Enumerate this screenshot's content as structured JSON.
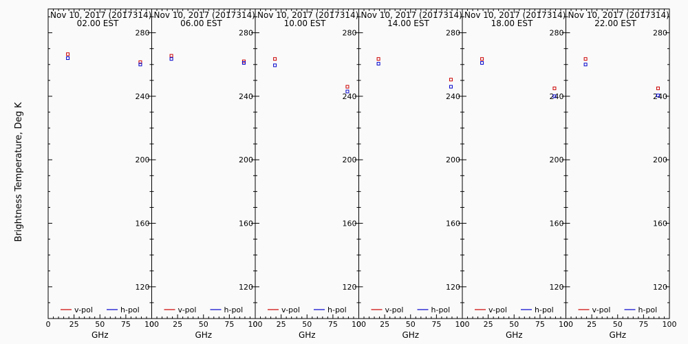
{
  "ylabel": "Brightness Temperature, Deg K",
  "chart_data": [
    {
      "type": "scatter",
      "date_line": "Nov 10, 2017 (2017314)",
      "time_line": "02.00 EST",
      "xlabel": "GHz",
      "ylabel": "Brightness Temperature, Deg K",
      "xlim": [
        0,
        100
      ],
      "ylim": [
        100,
        295
      ],
      "x_ticks": [
        0,
        25,
        50,
        75,
        100
      ],
      "y_ticks": [
        120,
        160,
        200,
        240,
        280
      ],
      "series": [
        {
          "name": "v-pol",
          "color": "#cc0000",
          "points": [
            [
              19,
              266.5
            ],
            [
              89,
              261.5
            ]
          ]
        },
        {
          "name": "h-pol",
          "color": "#0000cc",
          "points": [
            [
              19,
              264
            ],
            [
              89,
              260
            ]
          ]
        }
      ]
    },
    {
      "type": "scatter",
      "date_line": "Nov 10, 2017 (2017314)",
      "time_line": "06.00 EST",
      "xlabel": "GHz",
      "ylabel": "Brightness Temperature, Deg K",
      "xlim": [
        0,
        100
      ],
      "ylim": [
        100,
        295
      ],
      "x_ticks": [
        0,
        25,
        50,
        75,
        100
      ],
      "y_ticks": [
        120,
        160,
        200,
        240,
        280
      ],
      "series": [
        {
          "name": "v-pol",
          "color": "#cc0000",
          "points": [
            [
              19,
              265.5
            ],
            [
              89,
              262
            ]
          ]
        },
        {
          "name": "h-pol",
          "color": "#0000cc",
          "points": [
            [
              19,
              263.5
            ],
            [
              89,
              261
            ]
          ]
        }
      ]
    },
    {
      "type": "scatter",
      "date_line": "Nov 10, 2017 (2017314)",
      "time_line": "10.00 EST",
      "xlabel": "GHz",
      "ylabel": "Brightness Temperature, Deg K",
      "xlim": [
        0,
        100
      ],
      "ylim": [
        100,
        295
      ],
      "x_ticks": [
        0,
        25,
        50,
        75,
        100
      ],
      "y_ticks": [
        120,
        160,
        200,
        240,
        280
      ],
      "series": [
        {
          "name": "v-pol",
          "color": "#cc0000",
          "points": [
            [
              19,
              263.5
            ],
            [
              89,
              246
            ]
          ]
        },
        {
          "name": "h-pol",
          "color": "#0000cc",
          "points": [
            [
              19,
              259.5
            ],
            [
              89,
              243
            ]
          ]
        }
      ]
    },
    {
      "type": "scatter",
      "date_line": "Nov 10, 2017 (2017314)",
      "time_line": "14.00 EST",
      "xlabel": "GHz",
      "ylabel": "Brightness Temperature, Deg K",
      "xlim": [
        0,
        100
      ],
      "ylim": [
        100,
        295
      ],
      "x_ticks": [
        0,
        25,
        50,
        75,
        100
      ],
      "y_ticks": [
        120,
        160,
        200,
        240,
        280
      ],
      "series": [
        {
          "name": "v-pol",
          "color": "#cc0000",
          "points": [
            [
              19,
              263.5
            ],
            [
              89,
              250.5
            ]
          ]
        },
        {
          "name": "h-pol",
          "color": "#0000cc",
          "points": [
            [
              19,
              260.5
            ],
            [
              89,
              246
            ]
          ]
        }
      ]
    },
    {
      "type": "scatter",
      "date_line": "Nov 10, 2017 (2017314)",
      "time_line": "18.00 EST",
      "xlabel": "GHz",
      "ylabel": "Brightness Temperature, Deg K",
      "xlim": [
        0,
        100
      ],
      "ylim": [
        100,
        295
      ],
      "x_ticks": [
        0,
        25,
        50,
        75,
        100
      ],
      "y_ticks": [
        120,
        160,
        200,
        240,
        280
      ],
      "series": [
        {
          "name": "v-pol",
          "color": "#cc0000",
          "points": [
            [
              19,
              263.5
            ],
            [
              89,
              245
            ]
          ]
        },
        {
          "name": "h-pol",
          "color": "#0000cc",
          "points": [
            [
              19,
              261
            ],
            [
              89,
              240
            ]
          ]
        }
      ]
    },
    {
      "type": "scatter",
      "date_line": "Nov 10, 2017 (2017314)",
      "time_line": "22.00 EST",
      "xlabel": "GHz",
      "ylabel": "Brightness Temperature, Deg K",
      "xlim": [
        0,
        100
      ],
      "ylim": [
        100,
        295
      ],
      "x_ticks": [
        0,
        25,
        50,
        75,
        100
      ],
      "y_ticks": [
        120,
        160,
        200,
        240,
        280
      ],
      "series": [
        {
          "name": "v-pol",
          "color": "#cc0000",
          "points": [
            [
              19,
              263.5
            ],
            [
              89,
              245
            ]
          ]
        },
        {
          "name": "h-pol",
          "color": "#0000cc",
          "points": [
            [
              19,
              260
            ],
            [
              89,
              240.5
            ]
          ]
        }
      ]
    }
  ]
}
